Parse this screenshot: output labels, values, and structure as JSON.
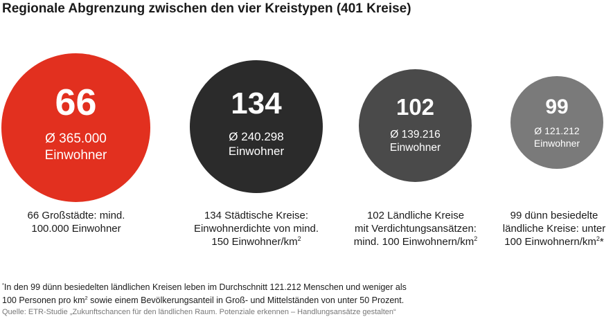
{
  "title": "Regionale Abgrenzung zwischen den vier Kreistypen (401 Kreise)",
  "chart_data": {
    "type": "bubble",
    "total_label": "401 Kreise",
    "categories": [
      "Großstädte",
      "Städtische Kreise",
      "Ländliche Kreise mit Verdichtungsansätzen",
      "dünn besiedelte ländliche Kreise"
    ],
    "values": [
      66,
      134,
      102,
      99
    ],
    "average_population": [
      365000,
      240298,
      139216,
      121212
    ],
    "colors": [
      "#e2301f",
      "#2b2b2b",
      "#4a4a4a",
      "#7a7a7a"
    ],
    "circles": [
      {
        "value": "66",
        "avg": "Ø 365.000",
        "unit": "Einwohner"
      },
      {
        "value": "134",
        "avg": "Ø 240.298",
        "unit": "Einwohner"
      },
      {
        "value": "102",
        "avg": "Ø 139.216",
        "unit": "Einwohner"
      },
      {
        "value": "99",
        "avg": "Ø 121.212",
        "unit": "Einwohner"
      }
    ],
    "descriptions": [
      {
        "line1": "66 Großstädte: mind.",
        "line2": "100.000 Einwohner",
        "line3": "",
        "sup": "",
        "tail": ""
      },
      {
        "line1": "134 Städtische Kreise:",
        "line2": "Einwohnerdichte von mind.",
        "line3": "150 Einwohner/km",
        "sup": "2",
        "tail": ""
      },
      {
        "line1": "102 Ländliche Kreise",
        "line2": "mit Verdichtungsansätzen:",
        "line3": "mind. 100 Einwohnern/km",
        "sup": "2",
        "tail": ""
      },
      {
        "line1": "99 dünn besiedelte",
        "line2": "ländliche Kreise: unter",
        "line3": "100 Einwohnern/km",
        "sup": "2",
        "tail": "*"
      }
    ]
  },
  "footnote": {
    "marker": "*",
    "line1": "In den 99 dünn besiedelten ländlichen Kreisen leben im Durchschnitt 121.212 Menschen und weniger als",
    "line2a": "100 Personen pro km",
    "line2sup": "2",
    "line2b": " sowie einem Bevölkerungsanteil in Groß- und Mittelständen von unter 50 Prozent."
  },
  "source": "Quelle: ETR-Studie „Zukunftschancen für den ländlichen Raum. Potenziale erkennen – Handlungsansätze gestalten“"
}
